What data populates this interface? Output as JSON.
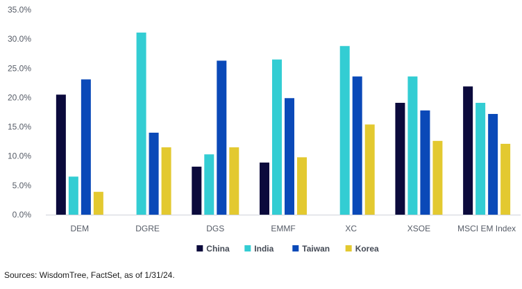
{
  "chart_data": {
    "type": "bar",
    "categories": [
      "DEM",
      "DGRE",
      "DGS",
      "EMMF",
      "XC",
      "XSOE",
      "MSCI EM Index"
    ],
    "series": [
      {
        "name": "China",
        "color": "#0b0a3c",
        "values": [
          20.5,
          null,
          8.2,
          8.9,
          null,
          19.1,
          21.9
        ]
      },
      {
        "name": "India",
        "color": "#33cdd3",
        "values": [
          6.5,
          31.1,
          10.3,
          26.5,
          28.8,
          23.6,
          19.1
        ]
      },
      {
        "name": "Taiwan",
        "color": "#0a49b8",
        "values": [
          23.1,
          14.0,
          26.3,
          19.9,
          23.6,
          17.8,
          17.2
        ]
      },
      {
        "name": "Korea",
        "color": "#e3c930",
        "values": [
          3.9,
          11.5,
          11.5,
          9.8,
          15.4,
          12.6,
          12.1
        ]
      }
    ],
    "yticks": [
      "0.0%",
      "5.0%",
      "10.0%",
      "15.0%",
      "20.0%",
      "25.0%",
      "30.0%",
      "35.0%"
    ],
    "ylim": [
      0,
      35
    ],
    "grid": false,
    "legend_position": "bottom-center",
    "axis_color": "#cfd3da"
  },
  "footer": {
    "source": "Sources: WisdomTree, FactSet, as of 1/31/24."
  }
}
